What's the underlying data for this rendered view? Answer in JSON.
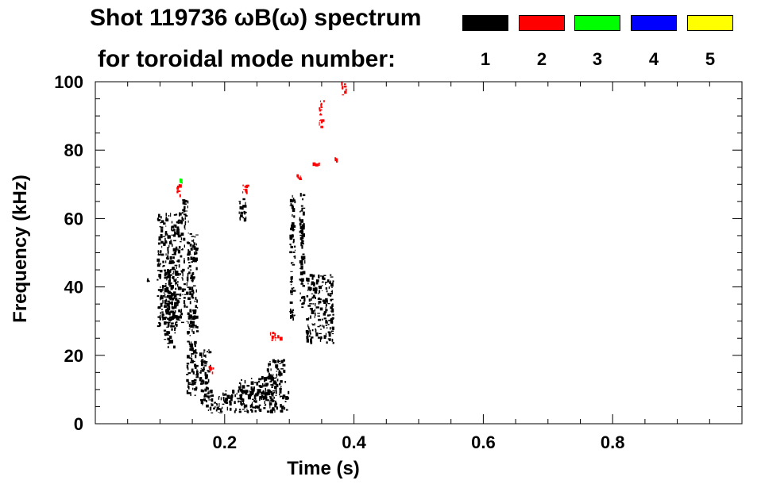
{
  "chart_data": {
    "type": "heatmap",
    "title_line1": "Shot 119736 ωB(ω) spectrum",
    "title_line2": "for toroidal mode number:",
    "xlabel": "Time (s)",
    "ylabel": "Frequency (kHz)",
    "xlim": [
      0.0,
      1.0
    ],
    "ylim": [
      0,
      100
    ],
    "xticks": [
      0.2,
      0.4,
      0.6,
      0.8
    ],
    "xtick_labels": [
      "0.2",
      "0.4",
      "0.6",
      "0.8"
    ],
    "yticks": [
      0,
      20,
      40,
      60,
      80,
      100
    ],
    "ytick_labels": [
      "0",
      "20",
      "40",
      "60",
      "80",
      "100"
    ],
    "grid": false,
    "legend_position": "top-right",
    "modes": [
      {
        "label": "1",
        "color": "#000000"
      },
      {
        "label": "2",
        "color": "#ff0000"
      },
      {
        "label": "3",
        "color": "#00ff00"
      },
      {
        "label": "4",
        "color": "#0000ff"
      },
      {
        "label": "5",
        "color": "#ffff00"
      }
    ],
    "blobs": [
      {
        "mode": "1",
        "t": [
          0.08,
          0.082
        ],
        "f": [
          41,
          43
        ]
      },
      {
        "mode": "1",
        "t": [
          0.095,
          0.14
        ],
        "f": [
          28,
          62
        ]
      },
      {
        "mode": "1",
        "t": [
          0.105,
          0.125
        ],
        "f": [
          22,
          46
        ]
      },
      {
        "mode": "1",
        "t": [
          0.13,
          0.145
        ],
        "f": [
          58,
          66
        ]
      },
      {
        "mode": "1",
        "t": [
          0.14,
          0.16
        ],
        "f": [
          8,
          56
        ]
      },
      {
        "mode": "1",
        "t": [
          0.16,
          0.18
        ],
        "f": [
          5,
          22
        ]
      },
      {
        "mode": "1",
        "t": [
          0.17,
          0.3
        ],
        "f": [
          3,
          10
        ]
      },
      {
        "mode": "1",
        "t": [
          0.22,
          0.28
        ],
        "f": [
          6,
          14
        ]
      },
      {
        "mode": "1",
        "t": [
          0.265,
          0.295
        ],
        "f": [
          8,
          19
        ]
      },
      {
        "mode": "1",
        "t": [
          0.22,
          0.235
        ],
        "f": [
          59,
          66
        ]
      },
      {
        "mode": "1",
        "t": [
          0.3,
          0.31
        ],
        "f": [
          30,
          67
        ]
      },
      {
        "mode": "1",
        "t": [
          0.315,
          0.325
        ],
        "f": [
          33,
          69
        ]
      },
      {
        "mode": "1",
        "t": [
          0.325,
          0.37
        ],
        "f": [
          23,
          44
        ]
      },
      {
        "mode": "2",
        "t": [
          0.125,
          0.135
        ],
        "f": [
          66,
          71
        ]
      },
      {
        "mode": "2",
        "t": [
          0.225,
          0.24
        ],
        "f": [
          67,
          70
        ]
      },
      {
        "mode": "2",
        "t": [
          0.27,
          0.29
        ],
        "f": [
          24,
          27
        ]
      },
      {
        "mode": "2",
        "t": [
          0.31,
          0.32
        ],
        "f": [
          71,
          73
        ]
      },
      {
        "mode": "2",
        "t": [
          0.335,
          0.35
        ],
        "f": [
          75,
          77
        ]
      },
      {
        "mode": "2",
        "t": [
          0.345,
          0.355
        ],
        "f": [
          86,
          95
        ]
      },
      {
        "mode": "2",
        "t": [
          0.38,
          0.39
        ],
        "f": [
          96,
          100
        ]
      },
      {
        "mode": "2",
        "t": [
          0.37,
          0.375
        ],
        "f": [
          76,
          78
        ]
      },
      {
        "mode": "2",
        "t": [
          0.175,
          0.185
        ],
        "f": [
          14,
          17
        ]
      },
      {
        "mode": "3",
        "t": [
          0.13,
          0.135
        ],
        "f": [
          70,
          72
        ]
      }
    ]
  }
}
